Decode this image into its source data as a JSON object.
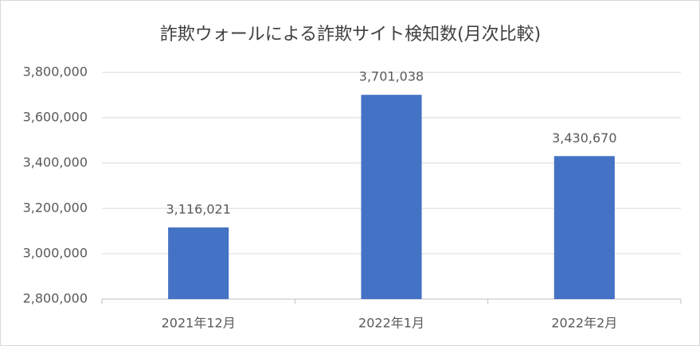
{
  "chart_data": {
    "type": "bar",
    "title": "詐欺ウォールによる詐欺サイト検知数(月次比較)",
    "categories": [
      "2021年12月",
      "2022年1月",
      "2022年2月"
    ],
    "values": [
      3116021,
      3701038,
      3430670
    ],
    "value_labels": [
      "3,116,021",
      "3,701,038",
      "3,430,670"
    ],
    "color": "#4472c4",
    "ylim": [
      2800000,
      3800000
    ],
    "yticks": [
      {
        "value": 2800000,
        "label": "2,800,000"
      },
      {
        "value": 3000000,
        "label": "3,000,000"
      },
      {
        "value": 3200000,
        "label": "3,200,000"
      },
      {
        "value": 3400000,
        "label": "3,400,000"
      },
      {
        "value": 3600000,
        "label": "3,600,000"
      },
      {
        "value": 3800000,
        "label": "3,800,000"
      }
    ],
    "grid": true
  }
}
